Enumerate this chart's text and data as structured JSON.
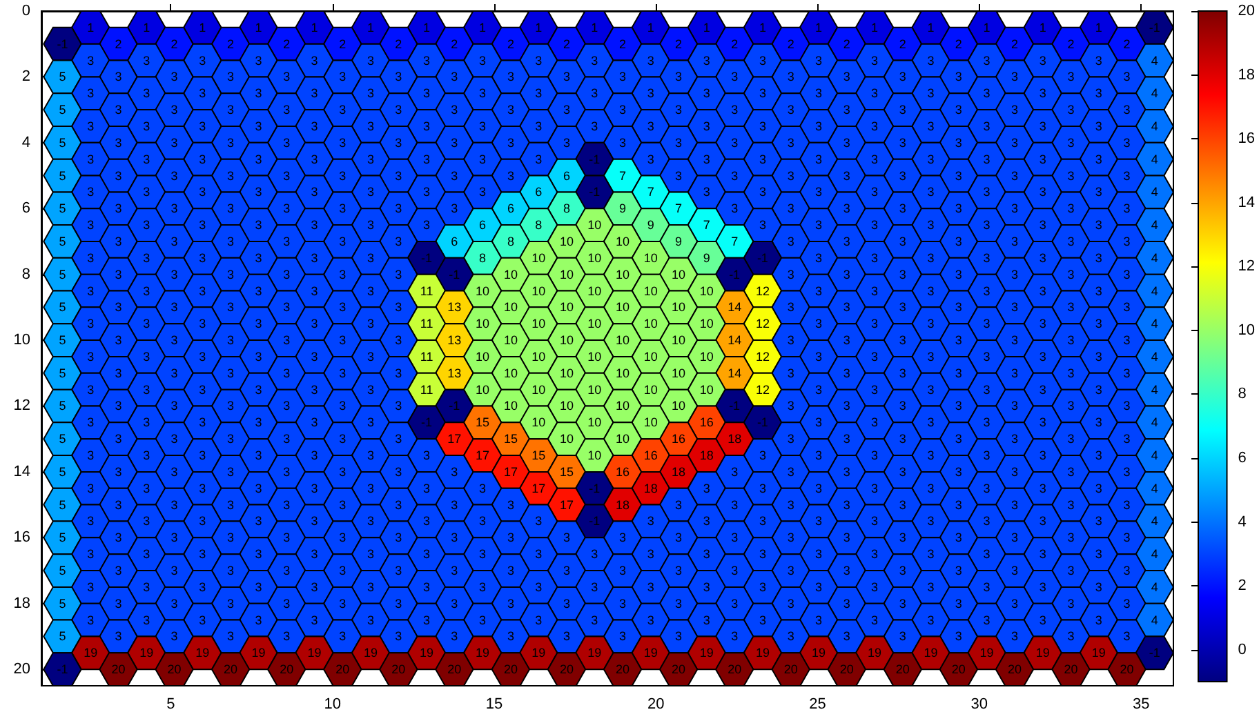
{
  "chart_data": {
    "type": "heatmap",
    "x": [
      1.65,
      2.52,
      3.38,
      4.25,
      5.11,
      5.98,
      6.85,
      7.71,
      8.58,
      9.44,
      10.31,
      11.18,
      12.04,
      12.91,
      13.77,
      14.64,
      15.51,
      16.37,
      17.24,
      18.1,
      18.97,
      19.84,
      20.7,
      21.57,
      22.43,
      23.3,
      24.17,
      25.03,
      25.9,
      26.76,
      27.63,
      28.5,
      29.36,
      30.23,
      31.09,
      31.96,
      32.83,
      33.69,
      34.56,
      35.42
    ],
    "y": [
      0.5,
      1,
      1.5,
      2,
      2.5,
      3,
      3.5,
      4,
      4.5,
      5,
      5.5,
      6,
      6.5,
      7,
      7.5,
      8,
      8.5,
      9,
      9.5,
      10,
      10.5,
      11,
      11.5,
      12,
      12.5,
      13,
      13.5,
      14,
      14.5,
      15,
      15.5,
      16,
      16.5,
      17,
      17.5,
      18,
      18.5,
      19,
      19.5,
      20
    ],
    "xlim": [
      1,
      36
    ],
    "xticks": [
      5,
      10,
      15,
      20,
      25,
      30,
      35
    ],
    "ylim": [
      20.5,
      0
    ],
    "yticks": [
      0,
      2,
      4,
      6,
      8,
      10,
      12,
      14,
      16,
      18,
      20
    ],
    "clim": [
      -1,
      20
    ],
    "cticks": [
      0,
      2,
      4,
      6,
      8,
      10,
      12,
      14,
      16,
      18,
      20
    ],
    "data_labels": true,
    "cells": [
      [
        null,
        1,
        null,
        1,
        null,
        1,
        null,
        1,
        null,
        1,
        null,
        1,
        null,
        1,
        null,
        1,
        null,
        1,
        null,
        1,
        null,
        1,
        null,
        1,
        null,
        1,
        null,
        1,
        null,
        1,
        null,
        1,
        null,
        1,
        null,
        1,
        null,
        1,
        null,
        -1
      ],
      [
        -1,
        null,
        2,
        null,
        2,
        null,
        2,
        null,
        2,
        null,
        2,
        null,
        2,
        null,
        2,
        null,
        2,
        null,
        2,
        null,
        2,
        null,
        2,
        null,
        2,
        null,
        2,
        null,
        2,
        null,
        2,
        null,
        2,
        null,
        2,
        null,
        2,
        null,
        2,
        null
      ],
      [
        null,
        3,
        null,
        3,
        null,
        3,
        null,
        3,
        null,
        3,
        null,
        3,
        null,
        3,
        null,
        3,
        null,
        3,
        null,
        3,
        null,
        3,
        null,
        3,
        null,
        3,
        null,
        3,
        null,
        3,
        null,
        3,
        null,
        3,
        null,
        3,
        null,
        3,
        null,
        4
      ],
      [
        5,
        null,
        3,
        null,
        3,
        null,
        3,
        null,
        3,
        null,
        3,
        null,
        3,
        null,
        3,
        null,
        3,
        null,
        3,
        null,
        3,
        null,
        3,
        null,
        3,
        null,
        3,
        null,
        3,
        null,
        3,
        null,
        3,
        null,
        3,
        null,
        3,
        null,
        3,
        null
      ],
      [
        null,
        3,
        null,
        3,
        null,
        3,
        null,
        3,
        null,
        3,
        null,
        3,
        null,
        3,
        null,
        3,
        null,
        3,
        null,
        3,
        null,
        3,
        null,
        3,
        null,
        3,
        null,
        3,
        null,
        3,
        null,
        3,
        null,
        3,
        null,
        3,
        null,
        3,
        null,
        4
      ],
      [
        5,
        null,
        3,
        null,
        3,
        null,
        3,
        null,
        3,
        null,
        3,
        null,
        3,
        null,
        3,
        null,
        3,
        null,
        3,
        null,
        3,
        null,
        3,
        null,
        3,
        null,
        3,
        null,
        3,
        null,
        3,
        null,
        3,
        null,
        3,
        null,
        3,
        null,
        3,
        null
      ],
      [
        null,
        3,
        null,
        3,
        null,
        3,
        null,
        3,
        null,
        3,
        null,
        3,
        null,
        3,
        null,
        3,
        null,
        3,
        null,
        3,
        null,
        3,
        null,
        3,
        null,
        3,
        null,
        3,
        null,
        3,
        null,
        3,
        null,
        3,
        null,
        3,
        null,
        3,
        null,
        4
      ],
      [
        5,
        null,
        3,
        null,
        3,
        null,
        3,
        null,
        3,
        null,
        3,
        null,
        3,
        null,
        3,
        null,
        3,
        null,
        3,
        null,
        3,
        null,
        3,
        null,
        3,
        null,
        3,
        null,
        3,
        null,
        3,
        null,
        3,
        null,
        3,
        null,
        3,
        null,
        3,
        null
      ],
      [
        null,
        3,
        null,
        3,
        null,
        3,
        null,
        3,
        null,
        3,
        null,
        3,
        null,
        3,
        null,
        3,
        null,
        3,
        null,
        -1,
        null,
        3,
        null,
        3,
        null,
        3,
        null,
        3,
        null,
        3,
        null,
        3,
        null,
        3,
        null,
        3,
        null,
        3,
        null,
        4
      ],
      [
        5,
        null,
        3,
        null,
        3,
        null,
        3,
        null,
        3,
        null,
        3,
        null,
        3,
        null,
        3,
        null,
        3,
        null,
        6,
        null,
        7,
        null,
        3,
        null,
        3,
        null,
        3,
        null,
        3,
        null,
        3,
        null,
        3,
        null,
        3,
        null,
        3,
        null,
        3,
        null
      ],
      [
        null,
        3,
        null,
        3,
        null,
        3,
        null,
        3,
        null,
        3,
        null,
        3,
        null,
        3,
        null,
        3,
        null,
        6,
        null,
        -1,
        null,
        7,
        null,
        3,
        null,
        3,
        null,
        3,
        null,
        3,
        null,
        3,
        null,
        3,
        null,
        3,
        null,
        3,
        null,
        4
      ],
      [
        5,
        null,
        3,
        null,
        3,
        null,
        3,
        null,
        3,
        null,
        3,
        null,
        3,
        null,
        3,
        null,
        6,
        null,
        8,
        null,
        9,
        null,
        7,
        null,
        3,
        null,
        3,
        null,
        3,
        null,
        3,
        null,
        3,
        null,
        3,
        null,
        3,
        null,
        3,
        null
      ],
      [
        null,
        3,
        null,
        3,
        null,
        3,
        null,
        3,
        null,
        3,
        null,
        3,
        null,
        3,
        null,
        6,
        null,
        8,
        null,
        10,
        null,
        9,
        null,
        7,
        null,
        3,
        null,
        3,
        null,
        3,
        null,
        3,
        null,
        3,
        null,
        3,
        null,
        3,
        null,
        4
      ],
      [
        5,
        null,
        3,
        null,
        3,
        null,
        3,
        null,
        3,
        null,
        3,
        null,
        3,
        null,
        6,
        null,
        8,
        null,
        10,
        null,
        10,
        null,
        9,
        null,
        7,
        null,
        3,
        null,
        3,
        null,
        3,
        null,
        3,
        null,
        3,
        null,
        3,
        null,
        3,
        null
      ],
      [
        null,
        3,
        null,
        3,
        null,
        3,
        null,
        3,
        null,
        3,
        null,
        3,
        null,
        -1,
        null,
        8,
        null,
        10,
        null,
        10,
        null,
        10,
        null,
        9,
        null,
        -1,
        null,
        3,
        null,
        3,
        null,
        3,
        null,
        3,
        null,
        3,
        null,
        3,
        null,
        4
      ],
      [
        5,
        null,
        3,
        null,
        3,
        null,
        3,
        null,
        3,
        null,
        3,
        null,
        3,
        null,
        -1,
        null,
        10,
        null,
        10,
        null,
        10,
        null,
        10,
        null,
        -1,
        null,
        3,
        null,
        3,
        null,
        3,
        null,
        3,
        null,
        3,
        null,
        3,
        null,
        3,
        null
      ],
      [
        null,
        3,
        null,
        3,
        null,
        3,
        null,
        3,
        null,
        3,
        null,
        3,
        null,
        11,
        null,
        10,
        null,
        10,
        null,
        10,
        null,
        10,
        null,
        10,
        null,
        12,
        null,
        3,
        null,
        3,
        null,
        3,
        null,
        3,
        null,
        3,
        null,
        3,
        null,
        4
      ],
      [
        5,
        null,
        3,
        null,
        3,
        null,
        3,
        null,
        3,
        null,
        3,
        null,
        3,
        null,
        13,
        null,
        10,
        null,
        10,
        null,
        10,
        null,
        10,
        null,
        14,
        null,
        3,
        null,
        3,
        null,
        3,
        null,
        3,
        null,
        3,
        null,
        3,
        null,
        3,
        null
      ],
      [
        null,
        3,
        null,
        3,
        null,
        3,
        null,
        3,
        null,
        3,
        null,
        3,
        null,
        11,
        null,
        10,
        null,
        10,
        null,
        10,
        null,
        10,
        null,
        10,
        null,
        12,
        null,
        3,
        null,
        3,
        null,
        3,
        null,
        3,
        null,
        3,
        null,
        3,
        null,
        4
      ],
      [
        5,
        null,
        3,
        null,
        3,
        null,
        3,
        null,
        3,
        null,
        3,
        null,
        3,
        null,
        13,
        null,
        10,
        null,
        10,
        null,
        10,
        null,
        10,
        null,
        14,
        null,
        3,
        null,
        3,
        null,
        3,
        null,
        3,
        null,
        3,
        null,
        3,
        null,
        3,
        null
      ],
      [
        null,
        3,
        null,
        3,
        null,
        3,
        null,
        3,
        null,
        3,
        null,
        3,
        null,
        11,
        null,
        10,
        null,
        10,
        null,
        10,
        null,
        10,
        null,
        10,
        null,
        12,
        null,
        3,
        null,
        3,
        null,
        3,
        null,
        3,
        null,
        3,
        null,
        3,
        null,
        4
      ],
      [
        5,
        null,
        3,
        null,
        3,
        null,
        3,
        null,
        3,
        null,
        3,
        null,
        3,
        null,
        13,
        null,
        10,
        null,
        10,
        null,
        10,
        null,
        10,
        null,
        14,
        null,
        3,
        null,
        3,
        null,
        3,
        null,
        3,
        null,
        3,
        null,
        3,
        null,
        3,
        null
      ],
      [
        null,
        3,
        null,
        3,
        null,
        3,
        null,
        3,
        null,
        3,
        null,
        3,
        null,
        11,
        null,
        10,
        null,
        10,
        null,
        10,
        null,
        10,
        null,
        10,
        null,
        12,
        null,
        3,
        null,
        3,
        null,
        3,
        null,
        3,
        null,
        3,
        null,
        3,
        null,
        4
      ],
      [
        5,
        null,
        3,
        null,
        3,
        null,
        3,
        null,
        3,
        null,
        3,
        null,
        3,
        null,
        -1,
        null,
        10,
        null,
        10,
        null,
        10,
        null,
        10,
        null,
        -1,
        null,
        3,
        null,
        3,
        null,
        3,
        null,
        3,
        null,
        3,
        null,
        3,
        null,
        3,
        null
      ],
      [
        null,
        3,
        null,
        3,
        null,
        3,
        null,
        3,
        null,
        3,
        null,
        3,
        null,
        -1,
        null,
        15,
        null,
        10,
        null,
        10,
        null,
        10,
        null,
        16,
        null,
        -1,
        null,
        3,
        null,
        3,
        null,
        3,
        null,
        3,
        null,
        3,
        null,
        3,
        null,
        4
      ],
      [
        5,
        null,
        3,
        null,
        3,
        null,
        3,
        null,
        3,
        null,
        3,
        null,
        3,
        null,
        17,
        null,
        15,
        null,
        10,
        null,
        10,
        null,
        16,
        null,
        18,
        null,
        3,
        null,
        3,
        null,
        3,
        null,
        3,
        null,
        3,
        null,
        3,
        null,
        3,
        null
      ],
      [
        null,
        3,
        null,
        3,
        null,
        3,
        null,
        3,
        null,
        3,
        null,
        3,
        null,
        3,
        null,
        17,
        null,
        15,
        null,
        10,
        null,
        16,
        null,
        18,
        null,
        3,
        null,
        3,
        null,
        3,
        null,
        3,
        null,
        3,
        null,
        3,
        null,
        3,
        null,
        4
      ],
      [
        5,
        null,
        3,
        null,
        3,
        null,
        3,
        null,
        3,
        null,
        3,
        null,
        3,
        null,
        3,
        null,
        17,
        null,
        15,
        null,
        16,
        null,
        18,
        null,
        3,
        null,
        3,
        null,
        3,
        null,
        3,
        null,
        3,
        null,
        3,
        null,
        3,
        null,
        3,
        null
      ],
      [
        null,
        3,
        null,
        3,
        null,
        3,
        null,
        3,
        null,
        3,
        null,
        3,
        null,
        3,
        null,
        3,
        null,
        17,
        null,
        -1,
        null,
        18,
        null,
        3,
        null,
        3,
        null,
        3,
        null,
        3,
        null,
        3,
        null,
        3,
        null,
        3,
        null,
        3,
        null,
        4
      ],
      [
        5,
        null,
        3,
        null,
        3,
        null,
        3,
        null,
        3,
        null,
        3,
        null,
        3,
        null,
        3,
        null,
        3,
        null,
        17,
        null,
        18,
        null,
        3,
        null,
        3,
        null,
        3,
        null,
        3,
        null,
        3,
        null,
        3,
        null,
        3,
        null,
        3,
        null,
        3,
        null
      ],
      [
        null,
        3,
        null,
        3,
        null,
        3,
        null,
        3,
        null,
        3,
        null,
        3,
        null,
        3,
        null,
        3,
        null,
        3,
        null,
        -1,
        null,
        3,
        null,
        3,
        null,
        3,
        null,
        3,
        null,
        3,
        null,
        3,
        null,
        3,
        null,
        3,
        null,
        3,
        null,
        4
      ],
      [
        5,
        null,
        3,
        null,
        3,
        null,
        3,
        null,
        3,
        null,
        3,
        null,
        3,
        null,
        3,
        null,
        3,
        null,
        3,
        null,
        3,
        null,
        3,
        null,
        3,
        null,
        3,
        null,
        3,
        null,
        3,
        null,
        3,
        null,
        3,
        null,
        3,
        null,
        3,
        null
      ],
      [
        null,
        3,
        null,
        3,
        null,
        3,
        null,
        3,
        null,
        3,
        null,
        3,
        null,
        3,
        null,
        3,
        null,
        3,
        null,
        3,
        null,
        3,
        null,
        3,
        null,
        3,
        null,
        3,
        null,
        3,
        null,
        3,
        null,
        3,
        null,
        3,
        null,
        3,
        null,
        4
      ],
      [
        5,
        null,
        3,
        null,
        3,
        null,
        3,
        null,
        3,
        null,
        3,
        null,
        3,
        null,
        3,
        null,
        3,
        null,
        3,
        null,
        3,
        null,
        3,
        null,
        3,
        null,
        3,
        null,
        3,
        null,
        3,
        null,
        3,
        null,
        3,
        null,
        3,
        null,
        3,
        null
      ],
      [
        null,
        3,
        null,
        3,
        null,
        3,
        null,
        3,
        null,
        3,
        null,
        3,
        null,
        3,
        null,
        3,
        null,
        3,
        null,
        3,
        null,
        3,
        null,
        3,
        null,
        3,
        null,
        3,
        null,
        3,
        null,
        3,
        null,
        3,
        null,
        3,
        null,
        3,
        null,
        4
      ],
      [
        5,
        null,
        3,
        null,
        3,
        null,
        3,
        null,
        3,
        null,
        3,
        null,
        3,
        null,
        3,
        null,
        3,
        null,
        3,
        null,
        3,
        null,
        3,
        null,
        3,
        null,
        3,
        null,
        3,
        null,
        3,
        null,
        3,
        null,
        3,
        null,
        3,
        null,
        3,
        null
      ],
      [
        null,
        3,
        null,
        3,
        null,
        3,
        null,
        3,
        null,
        3,
        null,
        3,
        null,
        3,
        null,
        3,
        null,
        3,
        null,
        3,
        null,
        3,
        null,
        3,
        null,
        3,
        null,
        3,
        null,
        3,
        null,
        3,
        null,
        3,
        null,
        3,
        null,
        3,
        null,
        4
      ],
      [
        5,
        null,
        3,
        null,
        3,
        null,
        3,
        null,
        3,
        null,
        3,
        null,
        3,
        null,
        3,
        null,
        3,
        null,
        3,
        null,
        3,
        null,
        3,
        null,
        3,
        null,
        3,
        null,
        3,
        null,
        3,
        null,
        3,
        null,
        3,
        null,
        3,
        null,
        3,
        null
      ],
      [
        null,
        19,
        null,
        19,
        null,
        19,
        null,
        19,
        null,
        19,
        null,
        19,
        null,
        19,
        null,
        19,
        null,
        19,
        null,
        19,
        null,
        19,
        null,
        19,
        null,
        19,
        null,
        19,
        null,
        19,
        null,
        19,
        null,
        19,
        null,
        19,
        null,
        19,
        null,
        -1
      ],
      [
        -1,
        null,
        20,
        null,
        20,
        null,
        20,
        null,
        20,
        null,
        20,
        null,
        20,
        null,
        20,
        null,
        20,
        null,
        20,
        null,
        20,
        null,
        20,
        null,
        20,
        null,
        20,
        null,
        20,
        null,
        20,
        null,
        20,
        null,
        20,
        null,
        20,
        null,
        20,
        null
      ]
    ]
  }
}
